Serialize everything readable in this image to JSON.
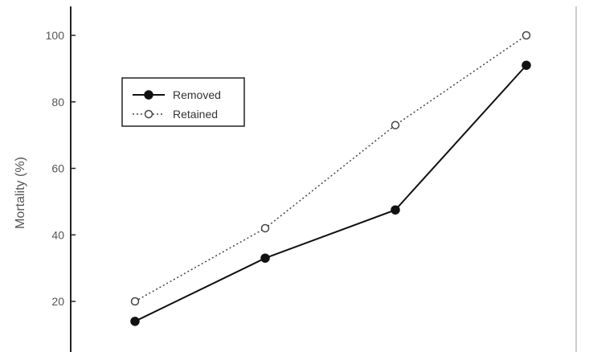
{
  "chart_data": {
    "type": "line",
    "title": "",
    "xlabel": "",
    "ylabel": "Mortality (%)",
    "x": [
      1,
      2,
      3,
      4
    ],
    "ylim": [
      12,
      109
    ],
    "yticks": [
      20,
      40,
      60,
      80,
      100
    ],
    "grid": false,
    "legend_position": "upper-left",
    "series": [
      {
        "name": "Removed",
        "values": [
          14,
          33,
          47.5,
          91
        ],
        "line_style": "solid",
        "marker": "filled-circle",
        "color": "#111111"
      },
      {
        "name": "Retained",
        "values": [
          20,
          42,
          73,
          100
        ],
        "line_style": "dotted",
        "marker": "open-circle",
        "color": "#444444"
      }
    ]
  }
}
